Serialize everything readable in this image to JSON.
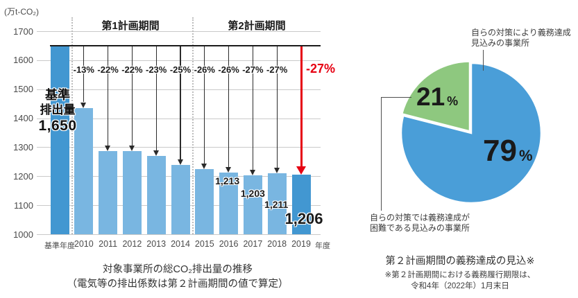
{
  "colors": {
    "bar_light": "#79b6e1",
    "bar_dark": "#4297d1",
    "pie_blue": "#4a9ed8",
    "pie_green": "#8ec87f",
    "arrow_black": "#2b2b2b",
    "arrow_red": "#e60012",
    "grid_gray": "#c9c9c9",
    "baseline_black": "#1a1a1a"
  },
  "chart_data": [
    {
      "type": "bar",
      "unit": "(万t-CO₂)",
      "title": "対象事業所の総CO₂排出量の推移",
      "subtitle": "（電気等の排出係数は第２計画期間の値で算定）",
      "categories": [
        "基準年度",
        "2010",
        "2011",
        "2012",
        "2013",
        "2014",
        "2015",
        "2016",
        "2017",
        "2018",
        "2019"
      ],
      "x_suffix": "年度",
      "values": [
        1650,
        1436,
        1287,
        1287,
        1270,
        1238,
        1225,
        1213,
        1203,
        1211,
        1206
      ],
      "value_labels": [
        null,
        null,
        null,
        null,
        null,
        null,
        null,
        "1,213",
        "1,203",
        "1,211",
        "1,206"
      ],
      "pct_labels": [
        null,
        "-13%",
        "-22%",
        "-22%",
        "-23%",
        "-25%",
        "-26%",
        "-26%",
        "-27%",
        "-27%",
        "-27%"
      ],
      "highlight_last_pct": "-27%",
      "ylim": [
        1000,
        1700
      ],
      "y_ticks": [
        1700,
        1600,
        1500,
        1400,
        1300,
        1200,
        1100,
        1000
      ],
      "baseline": {
        "value": 1650,
        "label_line1": "基準",
        "label_line2": "排出量",
        "value_label": "1,650"
      },
      "periods": [
        {
          "label": "第1計画期間"
        },
        {
          "label": "第2計画期間"
        }
      ],
      "grid": true,
      "legend": "none"
    },
    {
      "type": "pie",
      "title": "第２計画期間の義務達成の見込※",
      "footnote_line1": "※第２計画期間における義務履行期限は、",
      "footnote_line2": "令和4年（2022年）1月末日",
      "slices": [
        {
          "label": "自らの対策により義務達成見込みの事業所",
          "value": 79,
          "display_value": "79",
          "percent_sign": "%",
          "color": "#4a9ed8"
        },
        {
          "label": "自らの対策では義務達成が困難である見込みの事業所",
          "value": 21,
          "display_value": "21",
          "percent_sign": "%",
          "color": "#8ec87f"
        }
      ],
      "callouts": {
        "top": [
          "自らの対策により義務達成",
          "見込みの事業所"
        ],
        "bottom": [
          "自らの対策では義務達成が",
          "困難である見込みの事業所"
        ]
      },
      "legend": "none"
    }
  ]
}
